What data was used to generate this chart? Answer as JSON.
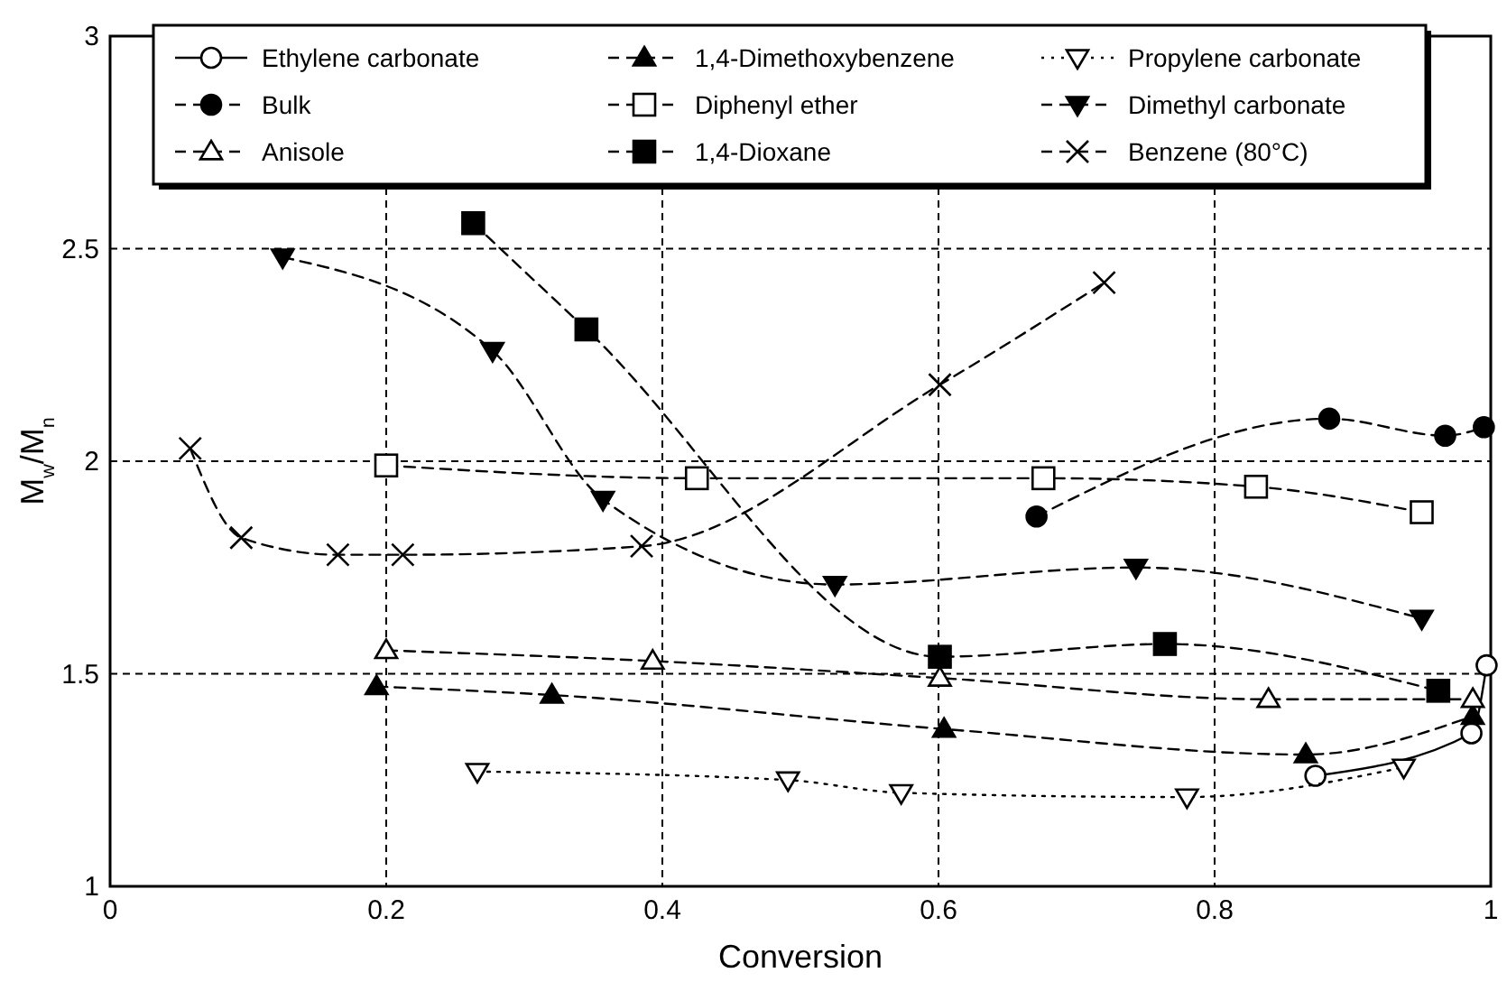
{
  "chart_data": {
    "type": "line",
    "xlabel": "Conversion",
    "ylabel": "M$_{w}$/M$_{n}$",
    "xlim": [
      0,
      1
    ],
    "ylim": [
      1,
      3
    ],
    "xticks": [
      0,
      0.2,
      0.4,
      0.6,
      0.8,
      1
    ],
    "yticks": [
      1,
      1.5,
      2,
      2.5,
      3
    ],
    "grid": true,
    "legend": "top",
    "series": [
      {
        "name": "Ethylene carbonate",
        "color": "#000000",
        "marker": "circle-open",
        "line_style": "solid",
        "x": [
          0.873,
          0.986,
          0.997
        ],
        "values": [
          1.26,
          1.36,
          1.52
        ]
      },
      {
        "name": "1,4-Dimethoxybenzene",
        "color": "#000000",
        "marker": "triangle",
        "line_style": "dashed",
        "x": [
          0.193,
          0.32,
          0.604,
          0.866,
          0.987
        ],
        "values": [
          1.47,
          1.45,
          1.37,
          1.31,
          1.4
        ]
      },
      {
        "name": "Propylene carbonate",
        "color": "#000000",
        "marker": "triangle-down-open",
        "line_style": "dotted",
        "x": [
          0.266,
          0.491,
          0.573,
          0.78,
          0.937
        ],
        "values": [
          1.27,
          1.25,
          1.22,
          1.21,
          1.28
        ]
      },
      {
        "name": "Bulk",
        "color": "#000000",
        "marker": "circle",
        "line_style": "dashed",
        "x": [
          0.671,
          0.883,
          0.967,
          0.995
        ],
        "values": [
          1.87,
          2.1,
          2.06,
          2.08
        ]
      },
      {
        "name": "Diphenyl ether",
        "color": "#000000",
        "marker": "square-open",
        "line_style": "dashed",
        "x": [
          0.2,
          0.425,
          0.676,
          0.83,
          0.95
        ],
        "values": [
          1.99,
          1.96,
          1.96,
          1.94,
          1.88
        ]
      },
      {
        "name": "Dimethyl carbonate",
        "color": "#000000",
        "marker": "triangle-down",
        "line_style": "dashed",
        "x": [
          0.125,
          0.277,
          0.357,
          0.525,
          0.743,
          0.95
        ],
        "values": [
          2.48,
          2.26,
          1.91,
          1.71,
          1.75,
          1.63
        ]
      },
      {
        "name": "Anisole",
        "color": "#000000",
        "marker": "triangle-open",
        "line_style": "dashed",
        "x": [
          0.2,
          0.393,
          0.601,
          0.839,
          0.987
        ],
        "values": [
          1.555,
          1.53,
          1.49,
          1.44,
          1.44
        ]
      },
      {
        "name": "1,4-Dioxane",
        "color": "#000000",
        "marker": "square",
        "line_style": "dashed",
        "x": [
          0.263,
          0.345,
          0.601,
          0.764,
          0.962
        ],
        "values": [
          2.56,
          2.31,
          1.54,
          1.57,
          1.46
        ]
      },
      {
        "name": "Benzene (80°C)",
        "color": "#000000",
        "marker": "cross",
        "line_style": "dashed",
        "x": [
          0.058,
          0.095,
          0.165,
          0.212,
          0.385,
          0.601,
          0.72
        ],
        "values": [
          2.03,
          1.82,
          1.78,
          1.78,
          1.8,
          2.18,
          2.42
        ]
      }
    ]
  }
}
